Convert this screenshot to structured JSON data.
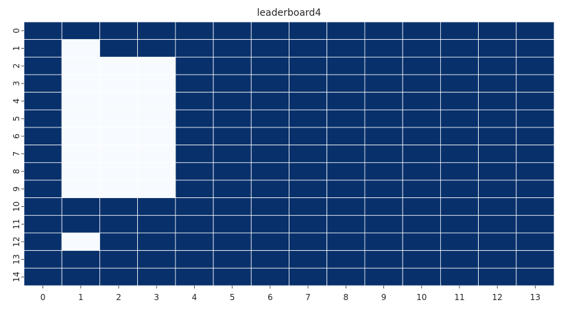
{
  "chart_data": {
    "type": "heatmap",
    "title": "leaderboard4",
    "x_categories": [
      "0",
      "1",
      "2",
      "3",
      "4",
      "5",
      "6",
      "7",
      "8",
      "9",
      "10",
      "11",
      "12",
      "13"
    ],
    "y_categories": [
      "0",
      "1",
      "2",
      "3",
      "4",
      "5",
      "6",
      "7",
      "8",
      "9",
      "10",
      "11",
      "12",
      "13",
      "14"
    ],
    "values": [
      [
        1,
        1,
        1,
        1,
        1,
        1,
        1,
        1,
        1,
        1,
        1,
        1,
        1,
        1
      ],
      [
        1,
        0,
        1,
        1,
        1,
        1,
        1,
        1,
        1,
        1,
        1,
        1,
        1,
        1
      ],
      [
        1,
        0,
        0,
        0,
        1,
        1,
        1,
        1,
        1,
        1,
        1,
        1,
        1,
        1
      ],
      [
        1,
        0,
        0,
        0,
        1,
        1,
        1,
        1,
        1,
        1,
        1,
        1,
        1,
        1
      ],
      [
        1,
        0,
        0,
        0,
        1,
        1,
        1,
        1,
        1,
        1,
        1,
        1,
        1,
        1
      ],
      [
        1,
        0,
        0,
        0,
        1,
        1,
        1,
        1,
        1,
        1,
        1,
        1,
        1,
        1
      ],
      [
        1,
        0,
        0,
        0,
        1,
        1,
        1,
        1,
        1,
        1,
        1,
        1,
        1,
        1
      ],
      [
        1,
        0,
        0,
        0,
        1,
        1,
        1,
        1,
        1,
        1,
        1,
        1,
        1,
        1
      ],
      [
        1,
        0,
        0,
        0,
        1,
        1,
        1,
        1,
        1,
        1,
        1,
        1,
        1,
        1
      ],
      [
        1,
        0,
        0,
        0,
        1,
        1,
        1,
        1,
        1,
        1,
        1,
        1,
        1,
        1
      ],
      [
        1,
        1,
        1,
        1,
        1,
        1,
        1,
        1,
        1,
        1,
        1,
        1,
        1,
        1
      ],
      [
        1,
        1,
        1,
        1,
        1,
        1,
        1,
        1,
        1,
        1,
        1,
        1,
        1,
        1
      ],
      [
        1,
        0,
        1,
        1,
        1,
        1,
        1,
        1,
        1,
        1,
        1,
        1,
        1,
        1
      ],
      [
        1,
        1,
        1,
        1,
        1,
        1,
        1,
        1,
        1,
        1,
        1,
        1,
        1,
        1
      ],
      [
        1,
        1,
        1,
        1,
        1,
        1,
        1,
        1,
        1,
        1,
        1,
        1,
        1,
        1
      ]
    ],
    "colormap": {
      "low": "#f7fbff",
      "high": "#08306b"
    },
    "gridline_color": "#ffffff",
    "colorbar": false,
    "grid": false,
    "xlabel": "",
    "ylabel": ""
  }
}
